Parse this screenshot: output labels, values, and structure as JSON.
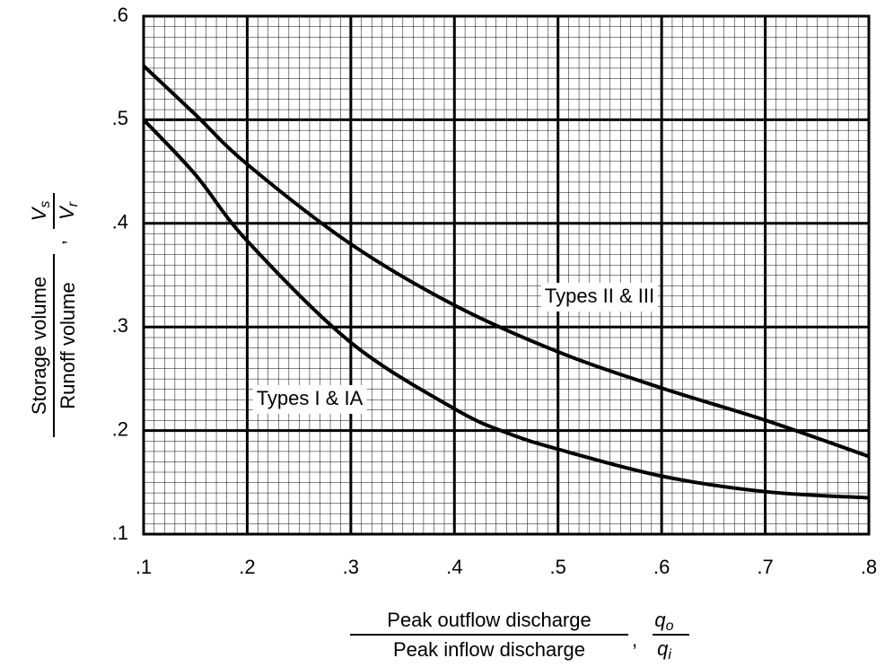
{
  "chart_data": {
    "type": "line",
    "x_label": {
      "numerator": "Peak outflow discharge",
      "denominator": "Peak inflow discharge",
      "separator": ",",
      "symbol": {
        "numerator": "q",
        "numerator_sub": "o",
        "denominator": "q",
        "denominator_sub": "i"
      }
    },
    "y_label": {
      "numerator": "Storage volume",
      "denominator": "Runoff volume",
      "separator": ",",
      "symbol": {
        "numerator": "V",
        "numerator_sub": "s",
        "denominator": "V",
        "denominator_sub": "r"
      }
    },
    "xlim": [
      0.1,
      0.8
    ],
    "ylim": [
      0.1,
      0.6
    ],
    "xticks": [
      {
        "value": 0.1,
        "label": ".1"
      },
      {
        "value": 0.2,
        "label": ".2"
      },
      {
        "value": 0.3,
        "label": ".3"
      },
      {
        "value": 0.4,
        "label": ".4"
      },
      {
        "value": 0.5,
        "label": ".5"
      },
      {
        "value": 0.6,
        "label": ".6"
      },
      {
        "value": 0.7,
        "label": ".7"
      },
      {
        "value": 0.8,
        "label": ".8"
      }
    ],
    "yticks": [
      {
        "value": 0.1,
        "label": ".1"
      },
      {
        "value": 0.2,
        "label": ".2"
      },
      {
        "value": 0.3,
        "label": ".3"
      },
      {
        "value": 0.4,
        "label": ".4"
      },
      {
        "value": 0.5,
        "label": ".5"
      },
      {
        "value": 0.6,
        "label": ".6"
      }
    ],
    "grid": true,
    "series": [
      {
        "name": "Types I & IA",
        "color": "#000000",
        "x": [
          0.1,
          0.15,
          0.2,
          0.3,
          0.4,
          0.45,
          0.5,
          0.6,
          0.7,
          0.8
        ],
        "values": [
          0.5,
          0.447,
          0.383,
          0.285,
          0.221,
          0.198,
          0.182,
          0.156,
          0.141,
          0.135
        ]
      },
      {
        "name": "Types II & III",
        "color": "#000000",
        "x": [
          0.1,
          0.15,
          0.2,
          0.3,
          0.4,
          0.5,
          0.6,
          0.7,
          0.8
        ],
        "values": [
          0.552,
          0.505,
          0.457,
          0.38,
          0.321,
          0.276,
          0.241,
          0.21,
          0.175
        ]
      }
    ]
  }
}
